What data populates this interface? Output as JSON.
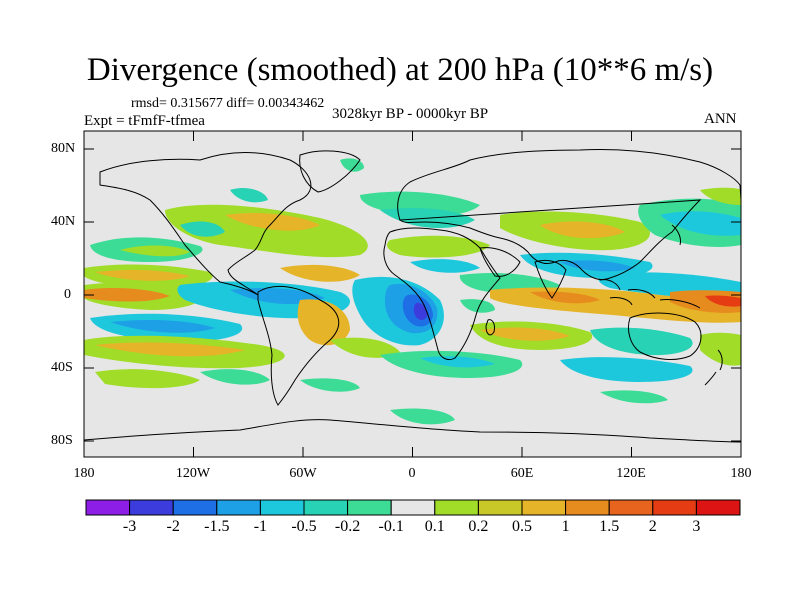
{
  "title": "Divergence (smoothed) at 200 hPa (10**6 m/s)",
  "stats": "rmsd= 0.315677 diff= 0.00343462",
  "experiment": "Expt = tFmfF-tfmea",
  "period": "3028kyr BP - 0000kyr BP",
  "season": "ANN",
  "lat_labels": [
    "80N",
    "40N",
    "0",
    "40S",
    "80S"
  ],
  "lon_labels": [
    "180",
    "120W",
    "60W",
    "0",
    "60E",
    "120E",
    "180"
  ],
  "colorbar": {
    "labels": [
      "-3",
      "-2",
      "-1.5",
      "-1",
      "-0.5",
      "-0.2",
      "-0.1",
      "0.1",
      "0.2",
      "0.5",
      "1",
      "1.5",
      "2",
      "3"
    ],
    "colors": [
      "#8c1ee6",
      "#3c3cdc",
      "#1e6ee6",
      "#1ea0e6",
      "#1ec8dc",
      "#28d2b4",
      "#3cdc96",
      "#e6e6e6",
      "#a0dc28",
      "#c8c828",
      "#e6b428",
      "#e68c1e",
      "#e6641e",
      "#e63c14",
      "#dc1414"
    ]
  },
  "map_colors": {
    "background": "#e6e6e6",
    "coast": "#000000"
  }
}
